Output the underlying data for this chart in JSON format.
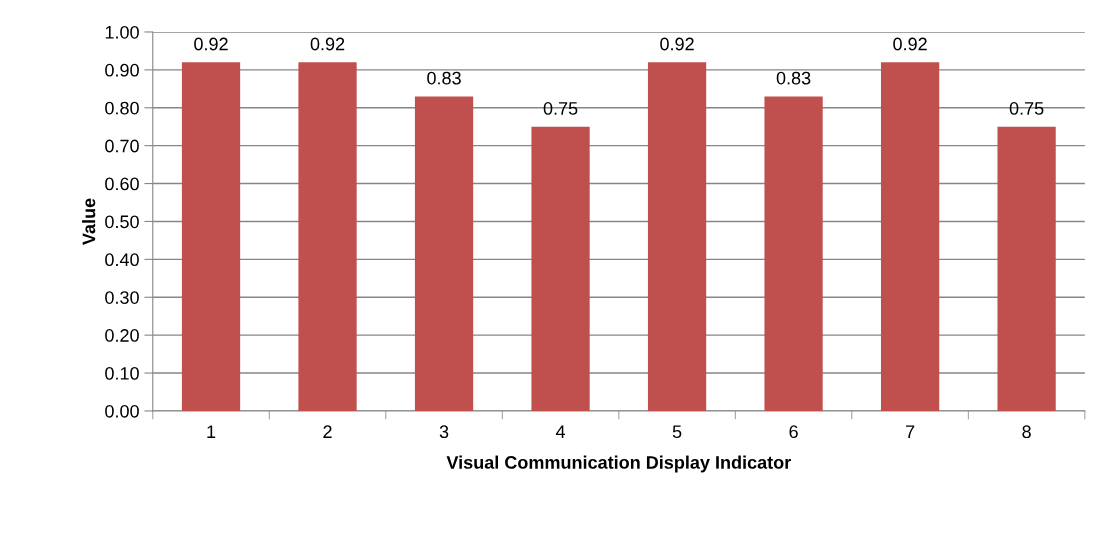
{
  "chart_data": {
    "type": "bar",
    "xlabel": "Visual Communication Display Indicator",
    "ylabel": "Value",
    "categories": [
      "1",
      "2",
      "3",
      "4",
      "5",
      "6",
      "7",
      "8"
    ],
    "values": [
      0.92,
      0.92,
      0.83,
      0.75,
      0.92,
      0.83,
      0.92,
      0.75
    ],
    "value_labels": [
      "0.92",
      "0.92",
      "0.83",
      "0.75",
      "0.92",
      "0.83",
      "0.92",
      "0.75"
    ],
    "color": "#c0504d",
    "ylim": [
      0,
      1
    ],
    "yticks": [
      {
        "value": 0,
        "label": "0.00"
      },
      {
        "value": 0.1,
        "label": "0.10"
      },
      {
        "value": 0.2,
        "label": "0.20"
      },
      {
        "value": 0.3,
        "label": "0.30"
      },
      {
        "value": 0.4,
        "label": "0.40"
      },
      {
        "value": 0.5,
        "label": "0.50"
      },
      {
        "value": 0.6,
        "label": "0.60"
      },
      {
        "value": 0.7,
        "label": "0.70"
      },
      {
        "value": 0.8,
        "label": "0.80"
      },
      {
        "value": 0.9,
        "label": "0.90"
      },
      {
        "value": 1,
        "label": "1.00"
      }
    ],
    "grid": "y",
    "legend": false
  }
}
